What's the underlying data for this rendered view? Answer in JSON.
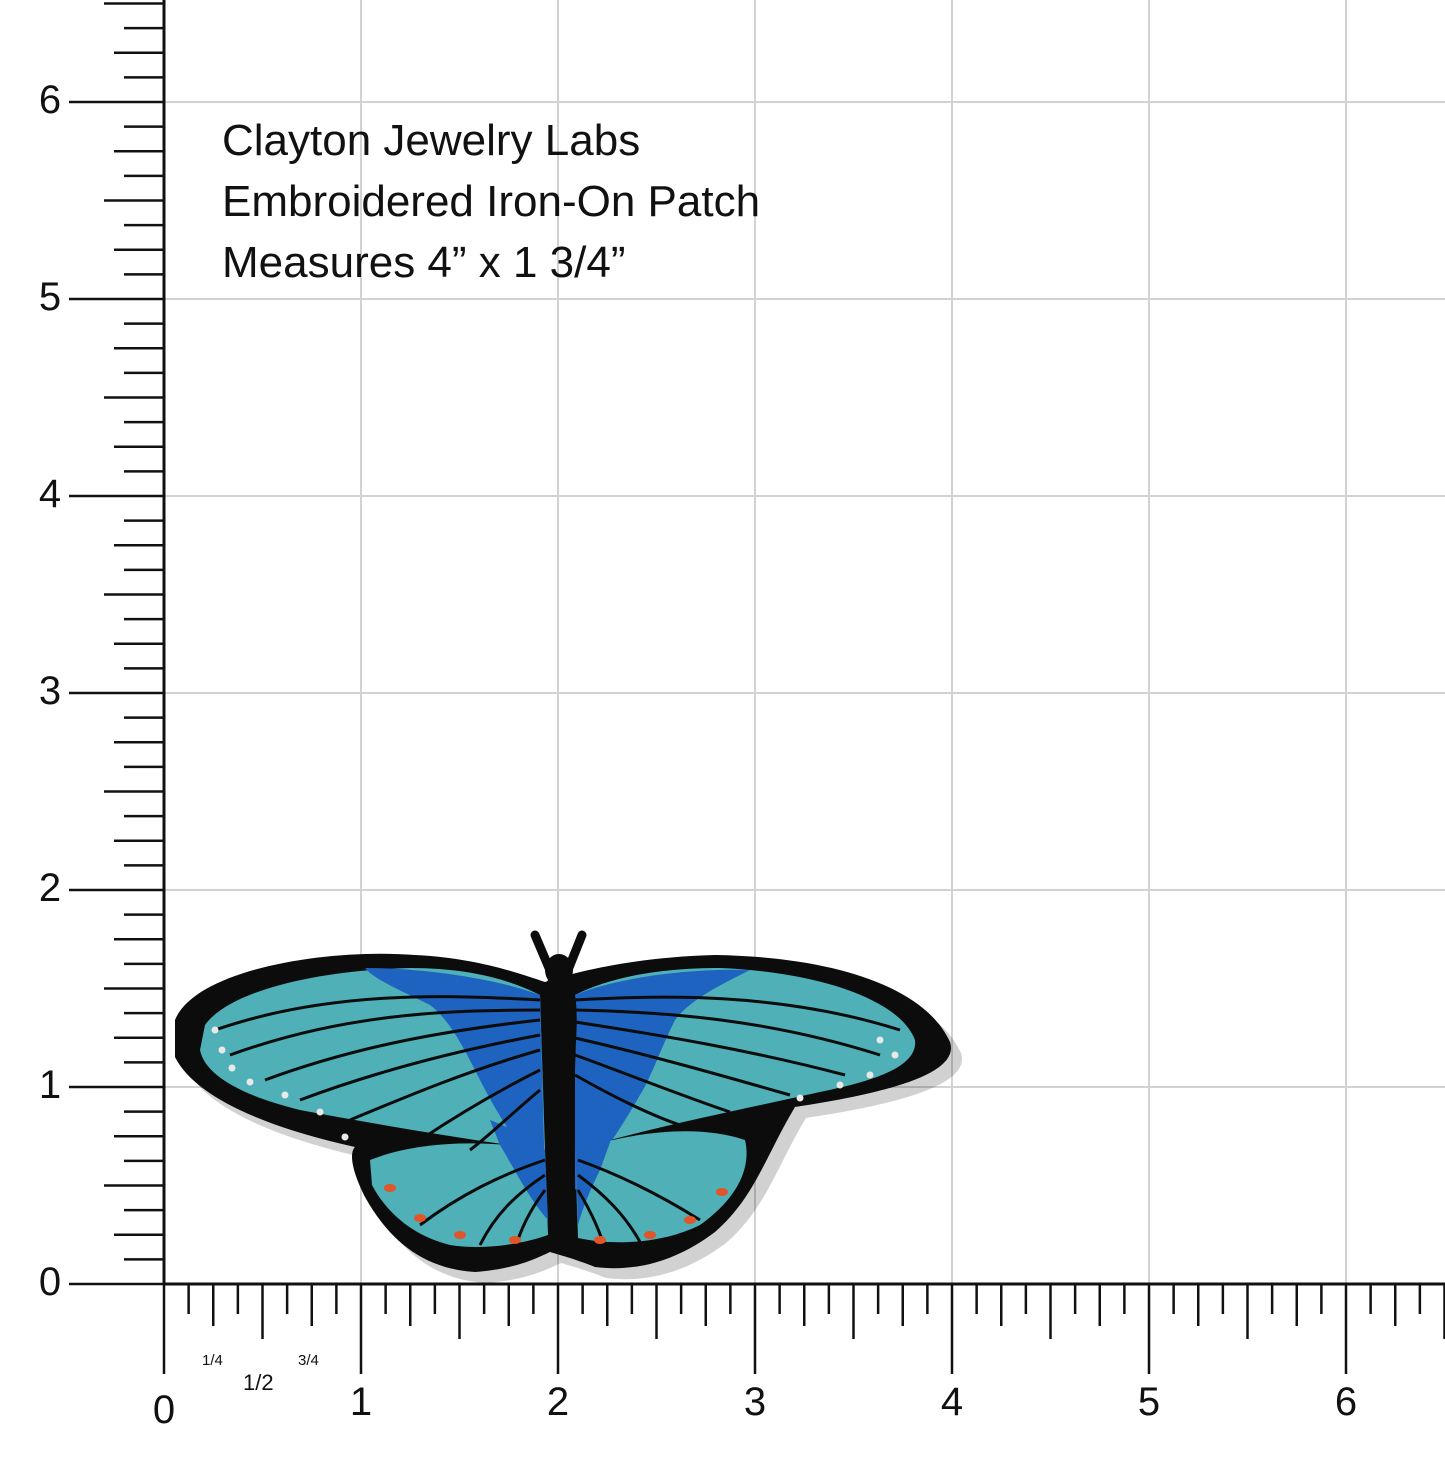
{
  "caption": {
    "line1": "Clayton Jewelry Labs",
    "line2": "Embroidered Iron-On Patch",
    "line3": "Measures 4” x 1 3/4”"
  },
  "ruler": {
    "x_labels": [
      "0",
      "1",
      "2",
      "3",
      "4",
      "5",
      "6"
    ],
    "y_labels": [
      "0",
      "1",
      "2",
      "3",
      "4",
      "5",
      "6"
    ],
    "fractions": [
      "1/4",
      "1/2",
      "3/4"
    ],
    "unit": "inch"
  },
  "colors": {
    "grid": "#d2d2d2",
    "ruler": "#111111",
    "wing_teal": "#4fb0b8",
    "wing_blue": "#1e63c0",
    "wing_border": "#0c0c0c",
    "spot_orange": "#e0552a"
  },
  "patch": {
    "subject": "butterfly-patch",
    "width_in": 4,
    "height_in": 1.75
  }
}
